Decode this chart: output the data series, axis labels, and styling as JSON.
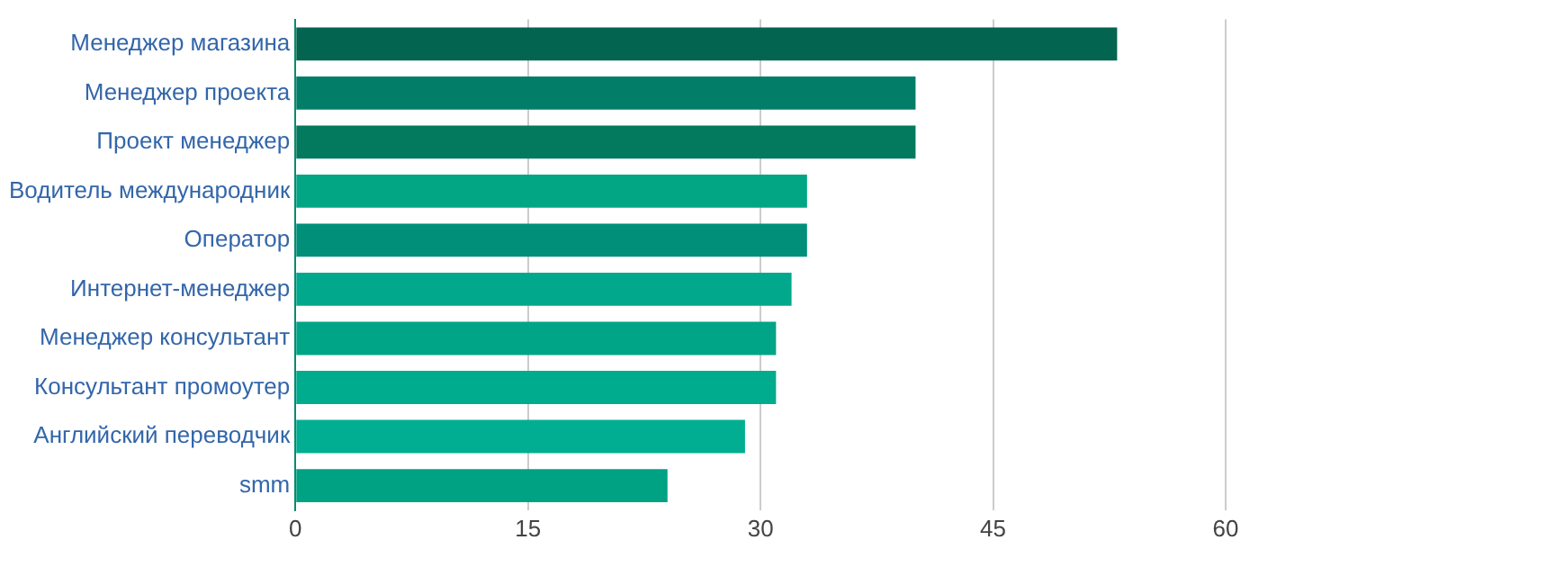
{
  "chart_data": {
    "type": "bar",
    "orientation": "horizontal",
    "categories": [
      "Менеджер магазина",
      "Менеджер проекта",
      "Проект менеджер",
      "Водитель международник",
      "Оператор",
      "Интернет-менеджер",
      "Менеджер консультант",
      "Консультант промоутер",
      "Английский переводчик",
      "smm"
    ],
    "values": [
      53,
      40,
      40,
      33,
      33,
      32,
      31,
      31,
      29,
      24
    ],
    "colors": [
      "#03654f",
      "#017d68",
      "#037a5e",
      "#02a584",
      "#018f7a",
      "#02a88c",
      "#00a486",
      "#00ac8e",
      "#01ae91",
      "#00a284"
    ],
    "xlim": [
      0,
      60
    ],
    "xticks": [
      0,
      15,
      30,
      45,
      60
    ],
    "grid": "x",
    "legend": false
  }
}
